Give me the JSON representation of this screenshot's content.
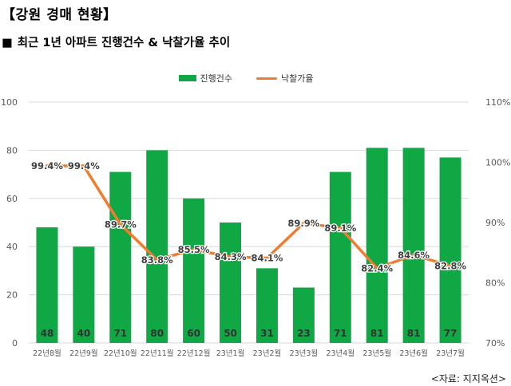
{
  "header": {
    "title": "【강원 경매 현황】",
    "subtitle_marker": "■",
    "subtitle": "최근 1년 아파트 진행건수 & 낙찰가율 추이"
  },
  "footer": {
    "source": "<자료: 지지옥션>"
  },
  "colors": {
    "bar": "#0fa845",
    "line": "#ed7d31",
    "grid": "#d9d9d9",
    "axis_text": "#595959"
  },
  "chart_data": {
    "type": "bar",
    "title": "최근 1년 아파트 진행건수 & 낙찰가율 추이",
    "categories": [
      "22년8월",
      "22년9월",
      "22년10월",
      "22년11월",
      "22년12월",
      "23년1월",
      "23년2월",
      "23년3월",
      "23년4월",
      "23년5월",
      "23년6월",
      "23년7월"
    ],
    "series": [
      {
        "name": "진행건수",
        "type": "bar",
        "axis": "left",
        "values": [
          48,
          40,
          71,
          80,
          60,
          50,
          31,
          23,
          71,
          81,
          81,
          77
        ],
        "labels": [
          "48",
          "40",
          "71",
          "80",
          "60",
          "50",
          "31",
          "23",
          "71",
          "81",
          "81",
          "77"
        ]
      },
      {
        "name": "낙찰가율",
        "type": "line",
        "axis": "right",
        "values": [
          99.4,
          99.4,
          89.7,
          83.8,
          85.5,
          84.3,
          84.1,
          89.9,
          89.1,
          82.4,
          84.6,
          82.8
        ],
        "labels": [
          "99.4%",
          "99.4%",
          "89.7%",
          "83.8%",
          "85.5%",
          "84.3%",
          "84.1%",
          "89.9%",
          "89.1%",
          "82.4%",
          "84.6%",
          "82.8%"
        ]
      }
    ],
    "y_left": {
      "min": 0,
      "max": 100,
      "step": 20,
      "ticks": [
        "0",
        "20",
        "40",
        "60",
        "80",
        "100"
      ]
    },
    "y_right": {
      "min": 70,
      "max": 110,
      "step": 10,
      "ticks": [
        "70%",
        "80%",
        "90%",
        "100%",
        "110%"
      ]
    },
    "legend_position": "top-center",
    "grid": true
  }
}
